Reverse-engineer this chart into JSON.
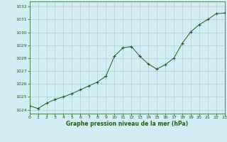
{
  "hours": [
    0,
    1,
    2,
    3,
    4,
    5,
    6,
    7,
    8,
    9,
    10,
    11,
    12,
    13,
    14,
    15,
    16,
    17,
    18,
    19,
    20,
    21,
    22,
    23
  ],
  "pressure": [
    1024.3,
    1024.1,
    1024.5,
    1024.8,
    1025.0,
    1025.25,
    1025.55,
    1025.85,
    1026.15,
    1026.6,
    1028.15,
    1028.8,
    1028.9,
    1028.15,
    1027.55,
    1027.15,
    1027.5,
    1028.0,
    1029.15,
    1030.05,
    1030.6,
    1031.0,
    1031.45,
    1031.5
  ],
  "background_color": "#d4edf4",
  "grid_color": "#aecfdb",
  "line_color": "#1a5e1a",
  "marker_color": "#1a5e1a",
  "xlabel": "Graphe pression niveau de la mer (hPa)",
  "xlabel_color": "#1a5e1a",
  "tick_color": "#1a5e1a",
  "yticks": [
    1024,
    1025,
    1026,
    1027,
    1028,
    1029,
    1030,
    1031,
    1032
  ],
  "ylim": [
    1023.7,
    1032.4
  ],
  "xlim": [
    0,
    23
  ],
  "xticks": [
    0,
    1,
    2,
    3,
    4,
    5,
    6,
    7,
    8,
    9,
    10,
    11,
    12,
    13,
    14,
    15,
    16,
    17,
    18,
    19,
    20,
    21,
    22,
    23
  ]
}
